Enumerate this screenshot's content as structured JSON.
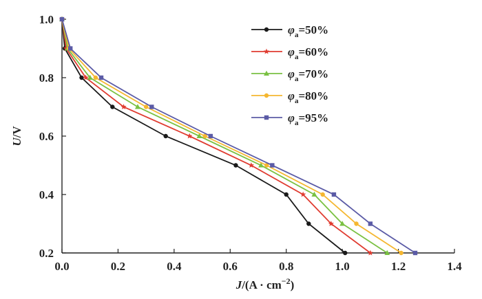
{
  "chart_data": {
    "type": "line",
    "xlabel": {
      "var": "J",
      "rest": "/(A · cm",
      "sup": "−2",
      "close": ")"
    },
    "ylabel": {
      "var": "U",
      "rest": "/V"
    },
    "xlim": [
      0.0,
      1.4
    ],
    "ylim": [
      0.2,
      1.0
    ],
    "x_ticks": [
      "0.0",
      "0.2",
      "0.4",
      "0.6",
      "0.8",
      "1.0",
      "1.2",
      "1.4"
    ],
    "y_ticks": [
      "0.2",
      "0.4",
      "0.6",
      "0.8",
      "1.0"
    ],
    "grid": false,
    "legend_position": "top-right",
    "series": [
      {
        "name": {
          "sym": "φ",
          "sub": "a",
          "val": "=50%"
        },
        "color": "#1a1a1a",
        "marker": "circle",
        "x": [
          0.0,
          0.01,
          0.07,
          0.18,
          0.37,
          0.62,
          0.8,
          0.88,
          1.01
        ],
        "y": [
          1.0,
          0.9,
          0.8,
          0.7,
          0.6,
          0.5,
          0.4,
          0.3,
          0.2
        ]
      },
      {
        "name": {
          "sym": "φ",
          "sub": "a",
          "val": "=60%"
        },
        "color": "#e03c31",
        "marker": "star",
        "x": [
          0.0,
          0.015,
          0.085,
          0.22,
          0.455,
          0.675,
          0.86,
          0.96,
          1.1
        ],
        "y": [
          1.0,
          0.9,
          0.8,
          0.7,
          0.6,
          0.5,
          0.4,
          0.3,
          0.2
        ]
      },
      {
        "name": {
          "sym": "φ",
          "sub": "a",
          "val": "=70%"
        },
        "color": "#7ac143",
        "marker": "triangle",
        "x": [
          0.0,
          0.02,
          0.1,
          0.27,
          0.49,
          0.71,
          0.9,
          1.0,
          1.16
        ],
        "y": [
          1.0,
          0.9,
          0.8,
          0.7,
          0.6,
          0.5,
          0.4,
          0.3,
          0.2
        ]
      },
      {
        "name": {
          "sym": "φ",
          "sub": "a",
          "val": "=80%"
        },
        "color": "#f5b731",
        "marker": "circle",
        "x": [
          0.0,
          0.025,
          0.12,
          0.3,
          0.51,
          0.73,
          0.93,
          1.05,
          1.21
        ],
        "y": [
          1.0,
          0.9,
          0.8,
          0.7,
          0.6,
          0.5,
          0.4,
          0.3,
          0.2
        ]
      },
      {
        "name": {
          "sym": "φ",
          "sub": "a",
          "val": "=95%"
        },
        "color": "#5b5ba6",
        "marker": "square",
        "x": [
          0.0,
          0.03,
          0.14,
          0.32,
          0.53,
          0.75,
          0.97,
          1.1,
          1.26
        ],
        "y": [
          1.0,
          0.9,
          0.8,
          0.7,
          0.6,
          0.5,
          0.4,
          0.3,
          0.2
        ]
      }
    ]
  }
}
